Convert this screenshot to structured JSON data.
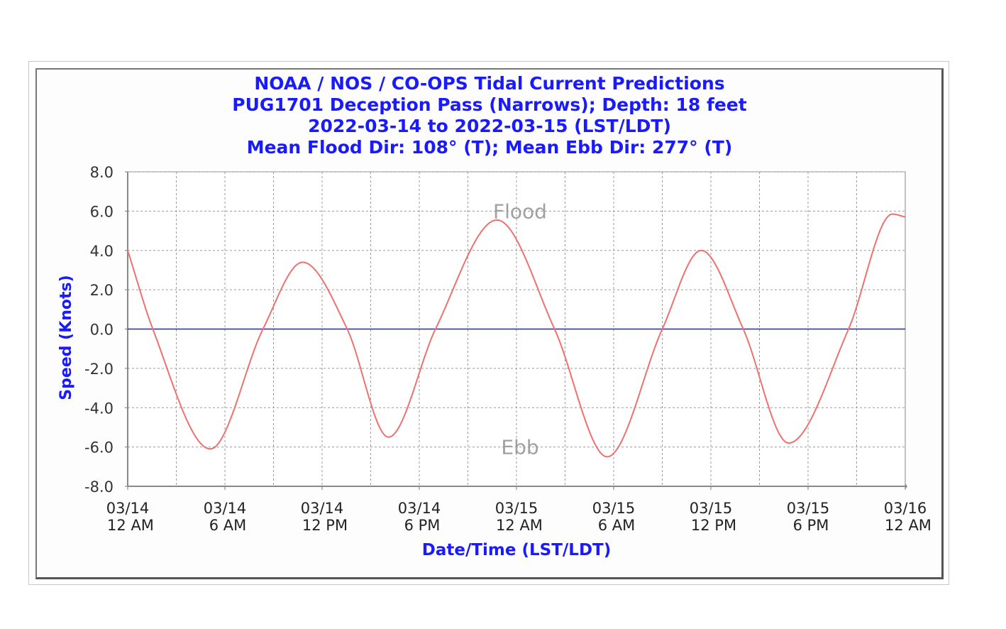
{
  "chart_data": {
    "type": "line",
    "title": [
      "NOAA / NOS / CO-OPS Tidal Current Predictions",
      "PUG1701 Deception Pass (Narrows);   Depth: 18 feet",
      "2022-03-14 to 2022-03-15 (LST/LDT)",
      "Mean Flood Dir: 108° (T);   Mean Ebb Dir: 277° (T)"
    ],
    "xlabel": "Date/Time (LST/LDT)",
    "ylabel": "Speed (Knots)",
    "ylim": [
      -8,
      8
    ],
    "xlim_hours": [
      0,
      48
    ],
    "y_ticks": [
      "8.0",
      "6.0",
      "4.0",
      "2.0",
      "0.0",
      "-2.0",
      "-4.0",
      "-6.0",
      "-8.0"
    ],
    "x_ticks": [
      {
        "hour": 0,
        "date": "03/14",
        "time": "12 AM"
      },
      {
        "hour": 6,
        "date": "03/14",
        "time": "6 AM"
      },
      {
        "hour": 12,
        "date": "03/14",
        "time": "12 PM"
      },
      {
        "hour": 18,
        "date": "03/14",
        "time": "6 PM"
      },
      {
        "hour": 24,
        "date": "03/15",
        "time": "12 AM"
      },
      {
        "hour": 30,
        "date": "03/15",
        "time": "6 AM"
      },
      {
        "hour": 36,
        "date": "03/15",
        "time": "12 PM"
      },
      {
        "hour": 42,
        "date": "03/15",
        "time": "6 PM"
      },
      {
        "hour": 48,
        "date": "03/16",
        "time": "12 AM"
      }
    ],
    "annotations": {
      "flood": "Flood",
      "ebb": "Ebb"
    },
    "grid": true,
    "series": [
      {
        "color": "#f07070",
        "points": [
          [
            0.0,
            4.0
          ],
          [
            1.55,
            0.0
          ],
          [
            5.1,
            -6.1
          ],
          [
            8.35,
            0.0
          ],
          [
            10.8,
            3.4
          ],
          [
            13.55,
            0.0
          ],
          [
            16.1,
            -5.5
          ],
          [
            19.0,
            0.0
          ],
          [
            22.8,
            5.55
          ],
          [
            26.35,
            0.0
          ],
          [
            29.6,
            -6.5
          ],
          [
            33.0,
            0.0
          ],
          [
            35.4,
            4.0
          ],
          [
            38.0,
            0.0
          ],
          [
            40.8,
            -5.8
          ],
          [
            44.5,
            0.0
          ],
          [
            47.2,
            5.85
          ],
          [
            48.0,
            5.7
          ]
        ]
      }
    ],
    "zero_line_color": "#2020e0"
  },
  "colors": {
    "title": "#1a1aff",
    "axis_label": "#1a1aff",
    "grid": "#9a9a9a",
    "annotation": "#a0a0a0"
  }
}
